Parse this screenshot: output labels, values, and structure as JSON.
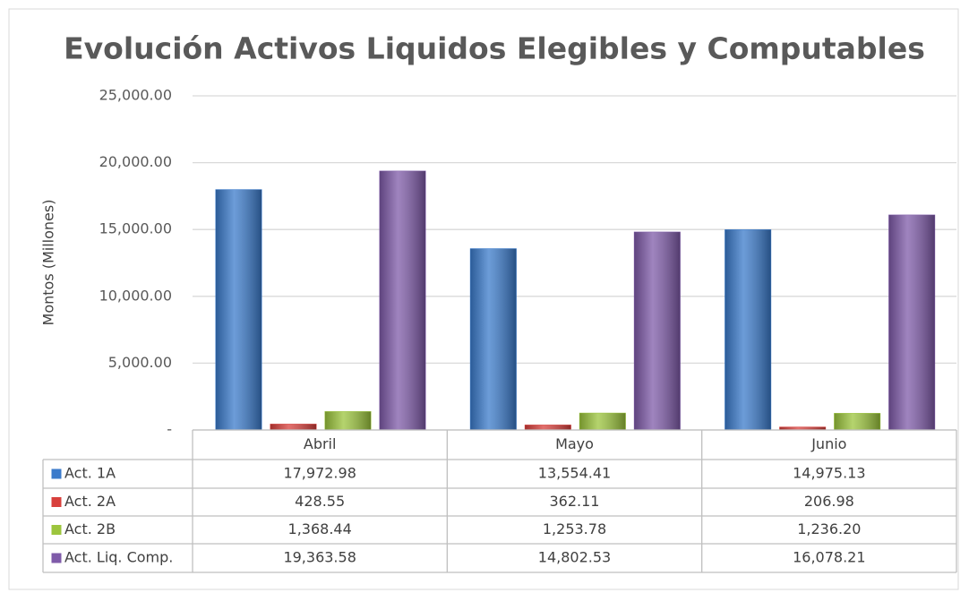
{
  "chart_data": {
    "type": "bar",
    "title": "Evolución Activos Liquidos Elegibles y Computables",
    "y_label": "Montos (Millones)",
    "categories": [
      "Abril",
      "Mayo",
      "Junio"
    ],
    "series": [
      {
        "name": "Act. 1A",
        "color": "#3b7bcb",
        "values": [
          17972.98,
          13554.41,
          14975.13
        ],
        "value_labels": [
          "17,972.98",
          "13,554.41",
          "14,975.13"
        ]
      },
      {
        "name": "Act. 2A",
        "color": "#d8403c",
        "values": [
          428.55,
          362.11,
          206.98
        ],
        "value_labels": [
          "428.55",
          "362.11",
          "206.98"
        ]
      },
      {
        "name": "Act. 2B",
        "color": "#9cc53d",
        "values": [
          1368.44,
          1253.78,
          1236.2
        ],
        "value_labels": [
          "1,368.44",
          "1,253.78",
          "1,236.20"
        ]
      },
      {
        "name": "Act. Liq. Comp.",
        "color": "#7f5ba9",
        "values": [
          19363.58,
          14802.53,
          16078.21
        ],
        "value_labels": [
          "19,363.58",
          "14,802.53",
          "16,078.21"
        ]
      }
    ],
    "ylim": [
      0,
      25000
    ],
    "yticks": [
      {
        "value": 0,
        "label": "-"
      },
      {
        "value": 5000,
        "label": "5,000.00"
      },
      {
        "value": 10000,
        "label": "10,000.00"
      },
      {
        "value": 15000,
        "label": "15,000.00"
      },
      {
        "value": 20000,
        "label": "20,000.00"
      },
      {
        "value": 25000,
        "label": "25,000.00"
      }
    ],
    "grid": true,
    "data_table": true
  }
}
